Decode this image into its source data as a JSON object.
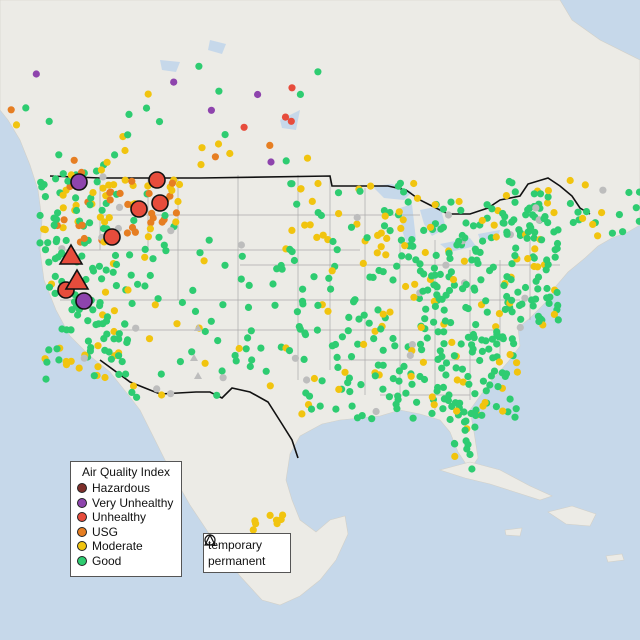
{
  "legend": {
    "title": "Air Quality Index",
    "categories": [
      {
        "label": "Hazardous",
        "color": "#7e2f2a"
      },
      {
        "label": "Very Unhealthy",
        "color": "#8e44ad"
      },
      {
        "label": "Unhealthy",
        "color": "#e74c3c"
      },
      {
        "label": "USG",
        "color": "#e67e22"
      },
      {
        "label": "Moderate",
        "color": "#f1c40f"
      },
      {
        "label": "Good",
        "color": "#2ecc71"
      }
    ]
  },
  "site_types": {
    "temporary": "temporary",
    "permanent": "permanent"
  },
  "colors": {
    "water": "#c6d8ea",
    "land": "#ecebe6",
    "country_border": "#111111",
    "state_border": "#aaaaaa",
    "no_data": "#bdbdbd"
  }
}
